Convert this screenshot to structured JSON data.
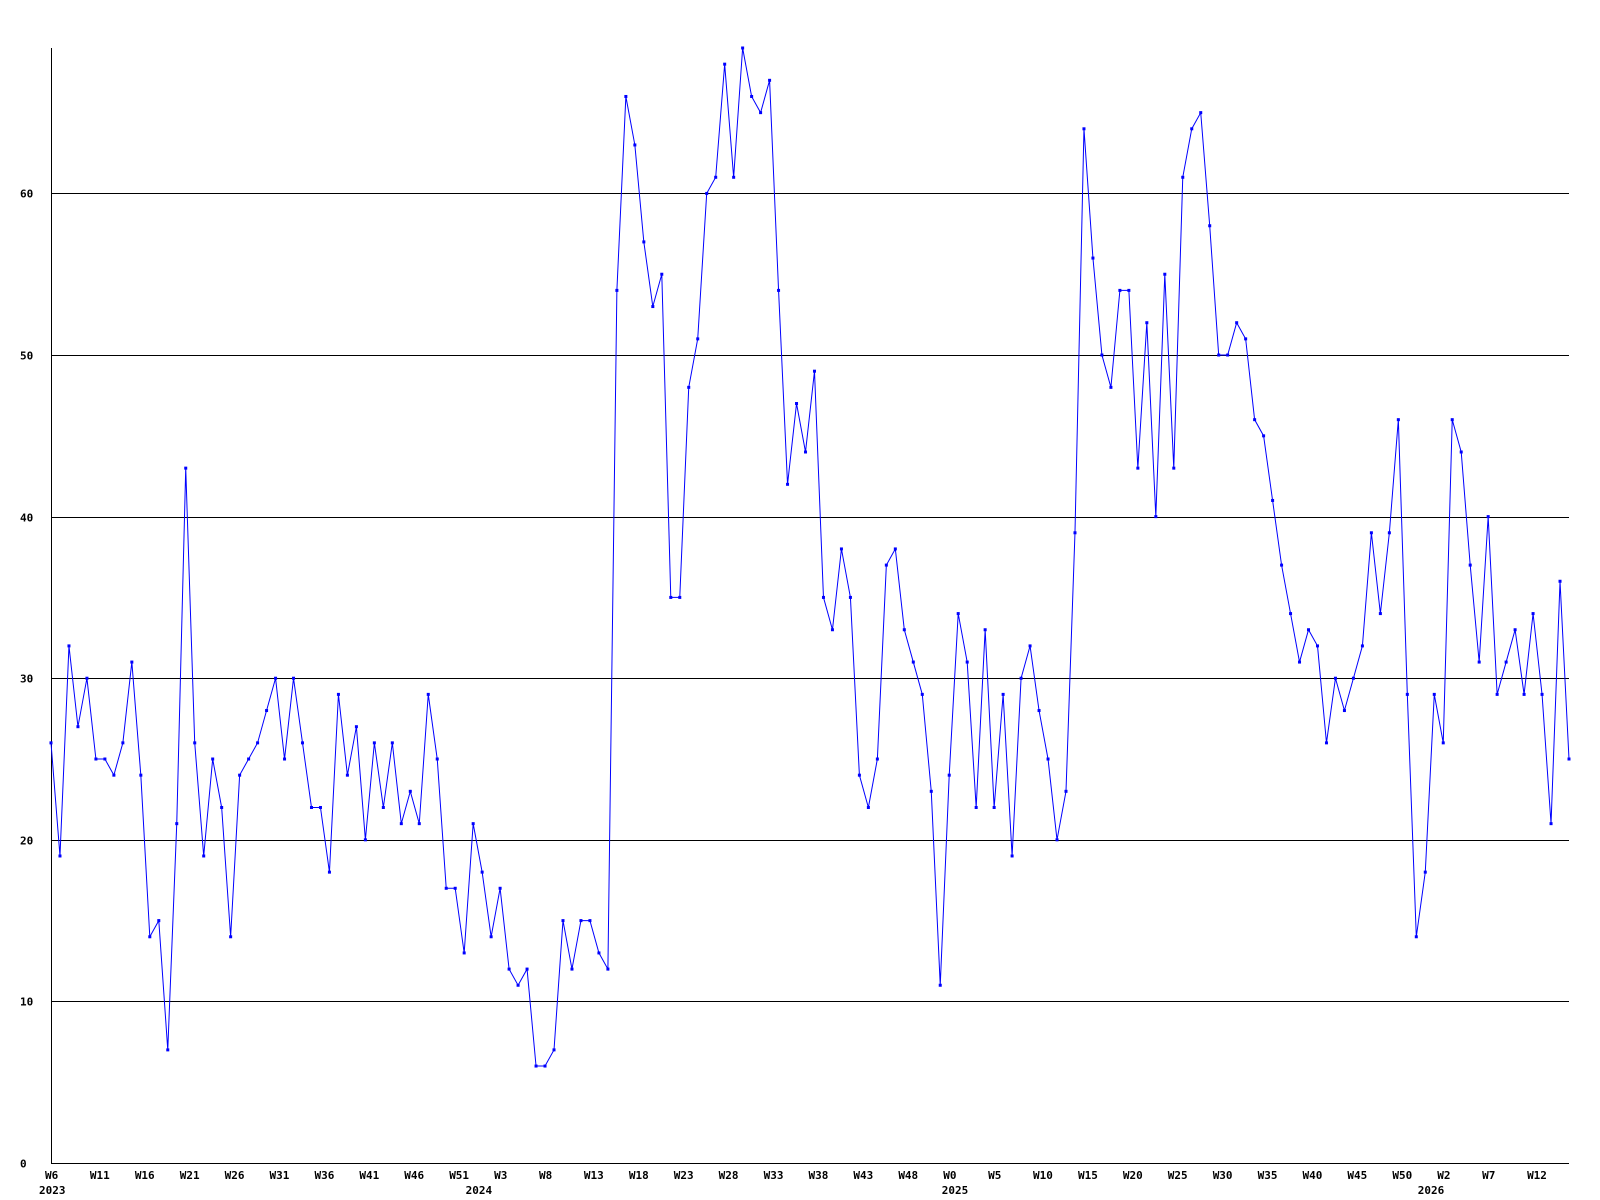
{
  "chart_data": {
    "type": "line",
    "title": "",
    "xlabel": "",
    "ylabel": "",
    "ylim": [
      0,
      69
    ],
    "yticks": [
      0,
      10,
      20,
      30,
      40,
      50,
      60
    ],
    "grid": "horizontal",
    "x_ticks": [
      {
        "label": "W6",
        "week_index": 0
      },
      {
        "label": "W11",
        "week_index": 5
      },
      {
        "label": "W16",
        "week_index": 10
      },
      {
        "label": "W21",
        "week_index": 15
      },
      {
        "label": "W26",
        "week_index": 20
      },
      {
        "label": "W31",
        "week_index": 25
      },
      {
        "label": "W36",
        "week_index": 30
      },
      {
        "label": "W41",
        "week_index": 35
      },
      {
        "label": "W46",
        "week_index": 40
      },
      {
        "label": "W51",
        "week_index": 45
      },
      {
        "label": "W3",
        "week_index": 50
      },
      {
        "label": "W8",
        "week_index": 55
      },
      {
        "label": "W13",
        "week_index": 60
      },
      {
        "label": "W18",
        "week_index": 65
      },
      {
        "label": "W23",
        "week_index": 70
      },
      {
        "label": "W28",
        "week_index": 75
      },
      {
        "label": "W33",
        "week_index": 80
      },
      {
        "label": "W38",
        "week_index": 85
      },
      {
        "label": "W43",
        "week_index": 90
      },
      {
        "label": "W48",
        "week_index": 95
      },
      {
        "label": "W0",
        "week_index": 100
      },
      {
        "label": "W5",
        "week_index": 105
      },
      {
        "label": "W10",
        "week_index": 110
      },
      {
        "label": "W15",
        "week_index": 115
      },
      {
        "label": "W20",
        "week_index": 120
      },
      {
        "label": "W25",
        "week_index": 125
      },
      {
        "label": "W30",
        "week_index": 130
      },
      {
        "label": "W35",
        "week_index": 135
      },
      {
        "label": "W40",
        "week_index": 140
      },
      {
        "label": "W45",
        "week_index": 145
      },
      {
        "label": "W50",
        "week_index": 150
      },
      {
        "label": "W2",
        "week_index": 155
      },
      {
        "label": "W7",
        "week_index": 160
      },
      {
        "label": "W12",
        "week_index": 165
      }
    ],
    "year_labels": [
      {
        "label": "2023",
        "week_index": 0
      },
      {
        "label": "2024",
        "week_index": 47.5
      },
      {
        "label": "2025",
        "week_index": 100.5
      },
      {
        "label": "2026",
        "week_index": 153.5
      }
    ],
    "series": [
      {
        "color": "#0000ff",
        "values": [
          26,
          19,
          32,
          27,
          30,
          25,
          25,
          24,
          26,
          31,
          24,
          14,
          15,
          7,
          21,
          43,
          26,
          19,
          25,
          22,
          14,
          24,
          25,
          26,
          28,
          30,
          25,
          30,
          26,
          22,
          22,
          18,
          29,
          24,
          27,
          20,
          26,
          22,
          26,
          21,
          23,
          21,
          29,
          25,
          17,
          17,
          13,
          21,
          18,
          14,
          17,
          12,
          11,
          12,
          6,
          6,
          7,
          15,
          12,
          15,
          15,
          13,
          12,
          54,
          66,
          63,
          57,
          53,
          55,
          35,
          35,
          48,
          51,
          60,
          61,
          68,
          61,
          69,
          66,
          65,
          67,
          54,
          42,
          47,
          44,
          49,
          35,
          33,
          38,
          35,
          24,
          22,
          25,
          37,
          38,
          33,
          31,
          29,
          23,
          11,
          24,
          34,
          31,
          22,
          33,
          22,
          29,
          19,
          30,
          32,
          28,
          25,
          20,
          23,
          39,
          64,
          56,
          50,
          48,
          54,
          54,
          43,
          52,
          40,
          55,
          43,
          61,
          64,
          65,
          58,
          50,
          50,
          52,
          51,
          46,
          45,
          41,
          37,
          34,
          31,
          33,
          32,
          26,
          30,
          28,
          30,
          32,
          39,
          34,
          39,
          46,
          29,
          14,
          18,
          29,
          26,
          46,
          44,
          37,
          31,
          40,
          29,
          31,
          33,
          29,
          34,
          29,
          21,
          36,
          25
        ]
      }
    ]
  }
}
